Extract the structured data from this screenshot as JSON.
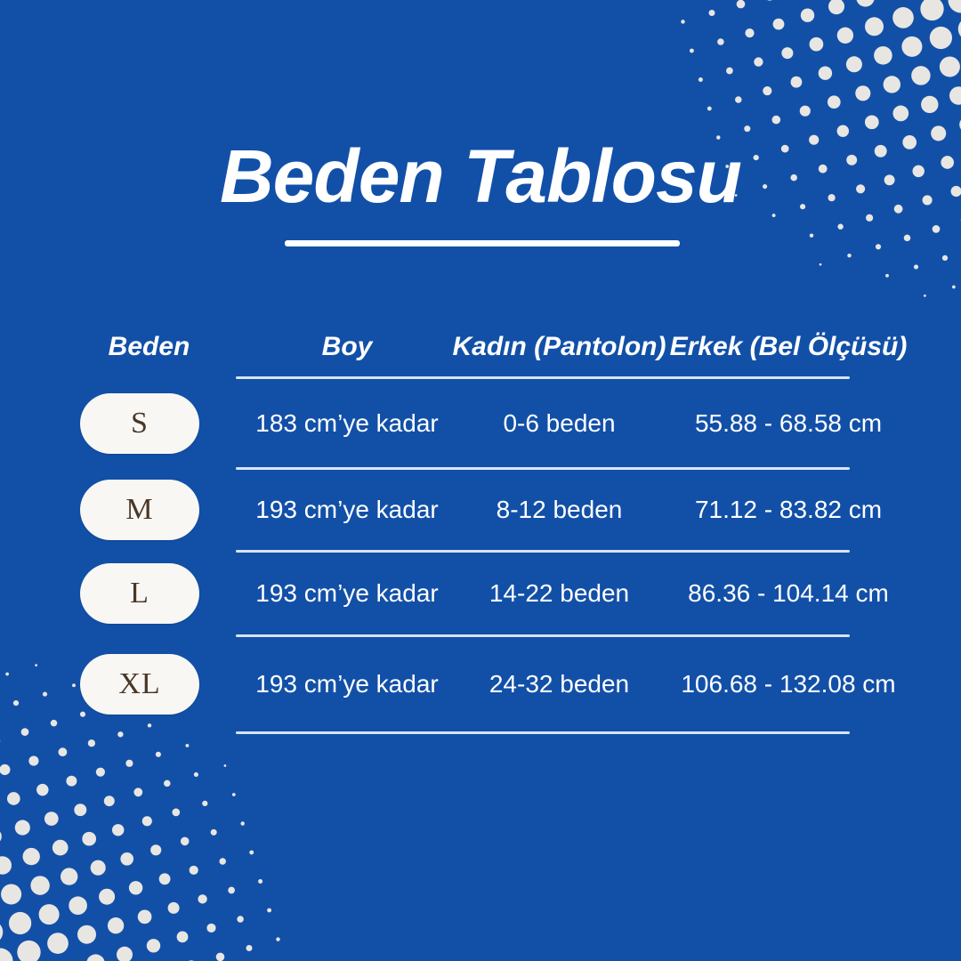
{
  "title": "Beden Tablosu",
  "table": {
    "headers": [
      "Beden",
      "Boy",
      "Kadın (Pantolon)",
      "Erkek (Bel Ölçüsü)"
    ],
    "rows": [
      {
        "size": "S",
        "boy": "183 cm’ye kadar",
        "kadin": "0-6 beden",
        "erkek": "55.88 - 68.58 cm"
      },
      {
        "size": "M",
        "boy": "193 cm’ye kadar",
        "kadin": "8-12 beden",
        "erkek": "71.12 - 83.82 cm"
      },
      {
        "size": "L",
        "boy": "193 cm’ye kadar",
        "kadin": "14-22 beden",
        "erkek": "86.36 - 104.14 cm"
      },
      {
        "size": "XL",
        "boy": "193 cm’ye kadar",
        "kadin": "24-32 beden",
        "erkek": "106.68 - 132.08 cm"
      }
    ]
  },
  "chart_data": {
    "type": "table",
    "title": "Beden Tablosu",
    "columns": [
      "Beden",
      "Boy",
      "Kadın (Pantolon)",
      "Erkek (Bel Ölçüsü)"
    ],
    "rows": [
      [
        "S",
        "183 cm’ye kadar",
        "0-6 beden",
        "55.88 - 68.58 cm"
      ],
      [
        "M",
        "193 cm’ye kadar",
        "8-12 beden",
        "71.12 - 83.82 cm"
      ],
      [
        "L",
        "193 cm’ye kadar",
        "14-22 beden",
        "86.36 - 104.14 cm"
      ],
      [
        "XL",
        "193 cm’ye kadar",
        "24-32 beden",
        "106.68 - 132.08 cm"
      ]
    ]
  },
  "colors": {
    "bg": "#1250a8",
    "dot": "#e8e6e2",
    "badge-bg": "#f8f7f4",
    "badge-text": "#4a3726",
    "text": "#ffffff",
    "line": "#d7e5f2"
  }
}
